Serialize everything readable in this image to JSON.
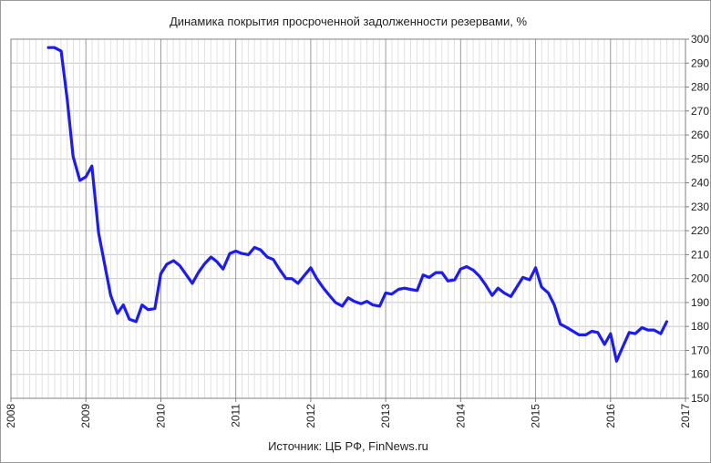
{
  "chart_data": {
    "type": "line",
    "title": "Динамика покрытия просроченной задолженности резервами, %",
    "source": "Источник: ЦБ РФ, FinNews.ru",
    "xlabel": "",
    "ylabel": "",
    "xlim": [
      2008,
      2017
    ],
    "ylim": [
      150,
      300
    ],
    "x_ticks": [
      "2008",
      "2009",
      "2010",
      "2011",
      "2012",
      "2013",
      "2014",
      "2015",
      "2016",
      "2017"
    ],
    "y_ticks": [
      "150",
      "160",
      "170",
      "180",
      "190",
      "200",
      "210",
      "220",
      "230",
      "240",
      "250",
      "260",
      "270",
      "280",
      "290",
      "300"
    ],
    "y_axis_side": "right",
    "grid": true,
    "line_color": "#1c1cf0",
    "series": [
      {
        "x": [
          2008.5,
          2008.58,
          2008.67,
          2008.75,
          2008.83,
          2008.92,
          2009.0,
          2009.08,
          2009.17,
          2009.25,
          2009.33,
          2009.42,
          2009.5,
          2009.58,
          2009.67,
          2009.75,
          2009.83,
          2009.92,
          2010.0,
          2010.08,
          2010.17,
          2010.25,
          2010.33,
          2010.42,
          2010.5,
          2010.58,
          2010.67,
          2010.75,
          2010.83,
          2010.92,
          2011.0,
          2011.08,
          2011.17,
          2011.25,
          2011.33,
          2011.42,
          2011.5,
          2011.58,
          2011.67,
          2011.75,
          2011.83,
          2011.92,
          2012.0,
          2012.08,
          2012.17,
          2012.25,
          2012.33,
          2012.42,
          2012.5,
          2012.58,
          2012.67,
          2012.75,
          2012.83,
          2012.92,
          2013.0,
          2013.08,
          2013.17,
          2013.25,
          2013.33,
          2013.42,
          2013.5,
          2013.58,
          2013.67,
          2013.75,
          2013.83,
          2013.92,
          2014.0,
          2014.08,
          2014.17,
          2014.25,
          2014.33,
          2014.42,
          2014.5,
          2014.58,
          2014.67,
          2014.75,
          2014.83,
          2014.92,
          2015.0,
          2015.08,
          2015.17,
          2015.25,
          2015.33,
          2015.42,
          2015.5,
          2015.58,
          2015.67,
          2015.75,
          2015.83,
          2015.92,
          2016.0,
          2016.08,
          2016.17,
          2016.25,
          2016.33,
          2016.42,
          2016.5,
          2016.58,
          2016.67,
          2016.75
        ],
        "values": [
          296.5,
          296.5,
          295.0,
          275.0,
          251.0,
          241.0,
          242.5,
          247.0,
          219.0,
          206.0,
          193.0,
          185.5,
          189.0,
          183.0,
          182.0,
          189.0,
          187.0,
          187.5,
          202.0,
          206.0,
          207.5,
          205.5,
          202.0,
          198.0,
          202.5,
          206.0,
          209.0,
          207.0,
          204.0,
          210.5,
          211.5,
          210.5,
          210.0,
          213.0,
          212.0,
          209.0,
          208.0,
          204.0,
          200.0,
          200.0,
          198.0,
          201.5,
          204.5,
          200.0,
          196.0,
          193.0,
          190.0,
          188.5,
          192.0,
          190.5,
          189.5,
          190.5,
          189.0,
          188.5,
          194.0,
          193.5,
          195.5,
          196.0,
          195.5,
          195.0,
          201.5,
          200.5,
          202.5,
          202.5,
          199.0,
          199.5,
          204.0,
          205.0,
          203.5,
          201.0,
          197.5,
          193.0,
          196.0,
          194.0,
          192.5,
          196.5,
          200.5,
          199.5,
          204.5,
          196.5,
          194.0,
          189.0,
          181.0,
          179.5,
          178.0,
          176.5,
          176.5,
          178.0,
          177.5,
          172.5,
          177.0,
          165.5,
          172.0,
          177.5,
          177.0,
          179.5,
          178.5,
          178.5,
          177.0,
          182.0
        ]
      }
    ]
  }
}
